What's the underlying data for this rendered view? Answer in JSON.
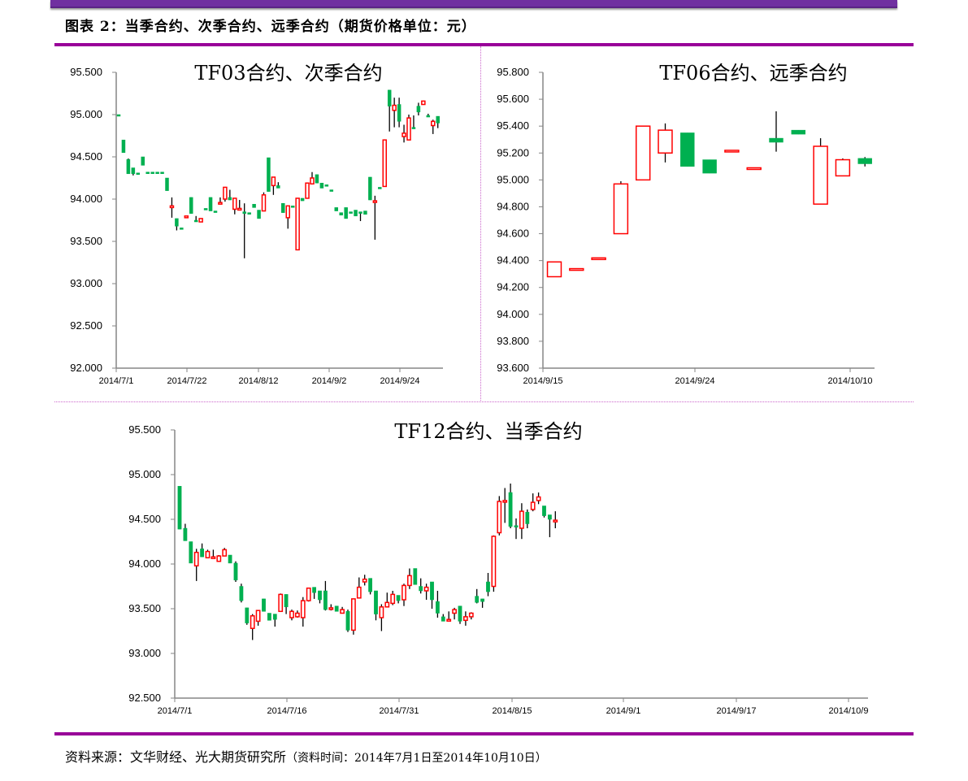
{
  "header": {
    "figure_title": "图表 2：当季合约、次季合约、远季合约（期货价格单位：元）"
  },
  "footer": {
    "source_label": "资料来源：文华财经、光大期货研究所",
    "source_note": "（资料时间：2014年7月1日至2014年10月10日）"
  },
  "colors": {
    "up": "#ff0000",
    "down": "#00b050",
    "wick": "#000000",
    "rule": "#990099",
    "topbar": "#7030a0"
  },
  "chart_data": [
    {
      "type": "candlestick",
      "title": "TF03合约、次季合约",
      "xlabel": "",
      "ylabel": "",
      "ylim": [
        92.0,
        95.5
      ],
      "yticks": [
        "92.000",
        "92.500",
        "93.000",
        "93.500",
        "94.000",
        "94.500",
        "95.000",
        "95.500"
      ],
      "xticks": [
        "2014/7/1",
        "2014/7/22",
        "2014/8/12",
        "2014/9/2",
        "2014/9/24"
      ],
      "grid": false,
      "candles": [
        [
          95.0,
          94.99,
          95.0,
          94.99
        ],
        [
          94.7,
          94.55,
          94.7,
          94.55
        ],
        [
          94.47,
          94.3,
          94.48,
          94.3
        ],
        [
          94.37,
          94.3,
          94.37,
          94.28
        ],
        [
          94.31,
          94.3,
          94.31,
          94.3
        ],
        [
          94.5,
          94.4,
          94.5,
          94.4
        ],
        [
          94.32,
          94.31,
          94.32,
          94.31
        ],
        [
          94.32,
          94.31,
          94.32,
          94.31
        ],
        [
          94.32,
          94.31,
          94.32,
          94.31
        ],
        [
          94.32,
          94.31,
          94.32,
          94.31
        ],
        [
          94.25,
          94.1,
          94.25,
          94.1
        ],
        [
          93.9,
          93.92,
          94.02,
          93.78
        ],
        [
          93.77,
          93.68,
          93.77,
          93.63
        ],
        [
          93.66,
          93.65,
          93.66,
          93.65
        ],
        [
          93.78,
          93.8,
          93.8,
          93.78
        ],
        [
          94.02,
          93.83,
          94.02,
          93.83
        ],
        [
          93.75,
          93.74,
          93.8,
          93.74
        ],
        [
          93.73,
          93.77,
          93.77,
          93.73
        ],
        [
          93.89,
          93.88,
          93.89,
          93.88
        ],
        [
          94.02,
          93.86,
          94.02,
          93.86
        ],
        [
          93.86,
          93.85,
          93.86,
          93.85
        ],
        [
          93.95,
          93.96,
          94.02,
          93.95
        ],
        [
          94.0,
          94.14,
          94.14,
          93.97
        ],
        [
          94.02,
          93.99,
          94.11,
          93.99
        ],
        [
          93.88,
          94.01,
          94.01,
          93.82
        ],
        [
          93.88,
          93.89,
          93.99,
          93.88
        ],
        [
          93.85,
          93.83,
          93.95,
          93.3
        ],
        [
          93.84,
          93.83,
          93.84,
          93.83
        ],
        [
          93.94,
          93.9,
          93.94,
          93.9
        ],
        [
          93.87,
          93.77,
          93.87,
          93.77
        ],
        [
          93.86,
          94.05,
          94.08,
          93.86
        ],
        [
          94.49,
          94.09,
          94.49,
          94.09
        ],
        [
          94.16,
          94.26,
          94.26,
          94.05
        ],
        [
          94.16,
          94.13,
          94.2,
          94.13
        ],
        [
          93.95,
          93.84,
          93.95,
          93.84
        ],
        [
          93.78,
          93.92,
          93.92,
          93.65
        ],
        [
          93.92,
          93.91,
          93.92,
          93.91
        ],
        [
          93.4,
          94.01,
          94.01,
          93.4
        ],
        [
          94.01,
          93.98,
          94.01,
          93.98
        ],
        [
          94.01,
          94.19,
          94.19,
          94.01
        ],
        [
          94.18,
          94.25,
          94.32,
          94.18
        ],
        [
          94.29,
          94.19,
          94.29,
          94.19
        ],
        [
          94.19,
          94.13,
          94.19,
          94.13
        ],
        [
          94.17,
          94.16,
          94.17,
          94.16
        ],
        [
          94.11,
          94.1,
          94.11,
          94.1
        ],
        [
          93.9,
          93.86,
          93.9,
          93.86
        ],
        [
          93.84,
          93.81,
          93.84,
          93.81
        ],
        [
          93.9,
          93.77,
          93.9,
          93.77
        ],
        [
          93.85,
          93.84,
          93.85,
          93.84
        ],
        [
          93.87,
          93.8,
          93.87,
          93.8
        ],
        [
          93.85,
          93.84,
          93.85,
          93.74
        ],
        [
          93.86,
          93.82,
          93.86,
          93.82
        ],
        [
          94.26,
          93.99,
          94.26,
          93.99
        ],
        [
          93.97,
          93.98,
          94.04,
          93.52
        ],
        [
          94.14,
          94.13,
          94.14,
          94.13
        ],
        [
          94.15,
          94.7,
          94.7,
          94.15
        ],
        [
          95.29,
          95.1,
          95.29,
          94.8
        ],
        [
          95.05,
          95.11,
          95.2,
          94.85
        ],
        [
          95.12,
          94.92,
          95.2,
          94.85
        ],
        [
          94.74,
          94.78,
          94.88,
          94.67
        ],
        [
          94.7,
          94.96,
          95.0,
          94.7
        ],
        [
          94.85,
          94.84,
          94.99,
          94.84
        ],
        [
          95.1,
          95.03,
          95.14,
          94.99
        ],
        [
          95.12,
          95.16,
          95.16,
          95.12
        ],
        [
          94.99,
          94.98,
          95.01,
          94.98
        ],
        [
          94.87,
          94.92,
          94.94,
          94.77
        ],
        [
          94.98,
          94.9,
          94.98,
          94.84
        ]
      ]
    },
    {
      "type": "candlestick",
      "title": "TF06合约、远季合约",
      "xlabel": "",
      "ylabel": "",
      "ylim": [
        93.6,
        95.8
      ],
      "yticks": [
        "93.600",
        "93.800",
        "94.000",
        "94.200",
        "94.400",
        "94.600",
        "94.800",
        "95.000",
        "95.200",
        "95.400",
        "95.600",
        "95.800"
      ],
      "xticks": [
        "2014/9/15",
        "2014/9/24",
        "2014/10/10"
      ],
      "grid": false,
      "candles": [
        [
          94.28,
          94.39,
          94.39,
          94.28
        ],
        [
          94.34,
          94.34,
          94.34,
          94.34
        ],
        [
          94.42,
          94.42,
          94.42,
          94.42
        ],
        [
          94.6,
          94.97,
          94.99,
          94.6
        ],
        [
          95.0,
          95.4,
          95.4,
          95.0
        ],
        [
          95.2,
          95.37,
          95.42,
          95.13
        ],
        [
          95.35,
          95.1,
          95.35,
          95.1
        ],
        [
          95.15,
          95.05,
          95.15,
          95.05
        ],
        [
          95.22,
          95.22,
          95.22,
          95.22
        ],
        [
          95.08,
          95.09,
          95.09,
          95.08
        ],
        [
          95.31,
          95.28,
          95.51,
          95.21
        ],
        [
          95.37,
          95.34,
          95.37,
          95.34
        ],
        [
          94.82,
          95.25,
          95.31,
          94.82
        ],
        [
          95.03,
          95.15,
          95.16,
          95.03
        ],
        [
          95.16,
          95.12,
          95.17,
          95.1
        ]
      ]
    },
    {
      "type": "candlestick",
      "title": "TF12合约、当季合约",
      "xlabel": "",
      "ylabel": "",
      "ylim": [
        92.5,
        95.5
      ],
      "yticks": [
        "92.500",
        "93.000",
        "93.500",
        "94.000",
        "94.500",
        "95.000",
        "95.500"
      ],
      "xticks": [
        "2014/7/1",
        "2014/7/16",
        "2014/7/31",
        "2014/8/15",
        "2014/9/1",
        "2014/9/17",
        "2014/10/9"
      ],
      "grid": false,
      "candles": [
        [
          94.87,
          94.39,
          94.87,
          94.39
        ],
        [
          94.4,
          94.26,
          94.45,
          94.26
        ],
        [
          94.25,
          94.01,
          94.25,
          94.01
        ],
        [
          93.98,
          94.13,
          94.17,
          93.81
        ],
        [
          94.17,
          94.08,
          94.23,
          94.08
        ],
        [
          94.07,
          94.14,
          94.16,
          94.07
        ],
        [
          94.07,
          94.08,
          94.16,
          94.07
        ],
        [
          94.03,
          94.09,
          94.1,
          94.03
        ],
        [
          94.09,
          94.16,
          94.18,
          94.09
        ],
        [
          94.1,
          94.01,
          94.1,
          94.01
        ],
        [
          94.01,
          93.82,
          94.03,
          93.8
        ],
        [
          93.75,
          93.59,
          93.78,
          93.57
        ],
        [
          93.51,
          93.34,
          93.51,
          93.32
        ],
        [
          93.28,
          93.42,
          93.44,
          93.15
        ],
        [
          93.36,
          93.48,
          93.48,
          93.31
        ],
        [
          93.61,
          93.47,
          93.61,
          93.47
        ],
        [
          93.45,
          93.37,
          93.45,
          93.37
        ],
        [
          93.44,
          93.38,
          93.44,
          93.3
        ],
        [
          93.47,
          93.66,
          93.67,
          93.47
        ],
        [
          93.66,
          93.52,
          93.66,
          93.44
        ],
        [
          93.4,
          93.47,
          93.49,
          93.37
        ],
        [
          93.41,
          93.45,
          93.48,
          93.4
        ],
        [
          93.4,
          93.59,
          93.63,
          93.3
        ],
        [
          93.59,
          93.73,
          93.73,
          93.58
        ],
        [
          93.74,
          93.68,
          93.74,
          93.61
        ],
        [
          93.7,
          93.6,
          93.7,
          93.56
        ],
        [
          93.7,
          93.49,
          93.81,
          93.48
        ],
        [
          93.5,
          93.51,
          93.55,
          93.48
        ],
        [
          93.53,
          93.47,
          93.53,
          93.47
        ],
        [
          93.45,
          93.49,
          93.52,
          93.45
        ],
        [
          93.47,
          93.26,
          93.49,
          93.24
        ],
        [
          93.26,
          93.61,
          93.61,
          93.21
        ],
        [
          93.62,
          93.74,
          93.85,
          93.62
        ],
        [
          93.8,
          93.83,
          93.88,
          93.76
        ],
        [
          93.84,
          93.69,
          93.84,
          93.66
        ],
        [
          93.7,
          93.44,
          93.7,
          93.37
        ],
        [
          93.4,
          93.52,
          93.55,
          93.25
        ],
        [
          93.52,
          93.57,
          93.68,
          93.52
        ],
        [
          93.56,
          93.66,
          93.7,
          93.54
        ],
        [
          93.65,
          93.59,
          93.65,
          93.56
        ],
        [
          93.6,
          93.76,
          93.78,
          93.53
        ],
        [
          93.76,
          93.87,
          93.95,
          93.72
        ],
        [
          93.95,
          93.77,
          93.95,
          93.77
        ],
        [
          93.75,
          93.7,
          93.84,
          93.67
        ],
        [
          93.7,
          93.74,
          93.78,
          93.6
        ],
        [
          93.8,
          93.6,
          93.8,
          93.5
        ],
        [
          93.58,
          93.45,
          93.7,
          93.4
        ],
        [
          93.41,
          93.36,
          93.44,
          93.36
        ],
        [
          93.37,
          93.38,
          93.47,
          93.37
        ],
        [
          93.45,
          93.49,
          93.51,
          93.38
        ],
        [
          93.53,
          93.36,
          93.53,
          93.33
        ],
        [
          93.37,
          93.41,
          93.47,
          93.31
        ],
        [
          93.41,
          93.45,
          93.46,
          93.38
        ],
        [
          93.64,
          93.57,
          93.72,
          93.56
        ],
        [
          93.61,
          93.58,
          93.61,
          93.51
        ],
        [
          93.8,
          93.69,
          93.9,
          93.64
        ],
        [
          93.75,
          94.31,
          94.32,
          93.69
        ],
        [
          94.35,
          94.7,
          94.76,
          94.32
        ],
        [
          94.7,
          94.71,
          94.85,
          94.46
        ],
        [
          94.8,
          94.42,
          94.9,
          94.4
        ],
        [
          94.43,
          94.42,
          94.51,
          94.28
        ],
        [
          94.4,
          94.59,
          94.68,
          94.28
        ],
        [
          94.58,
          94.45,
          94.61,
          94.4
        ],
        [
          94.61,
          94.69,
          94.79,
          94.59
        ],
        [
          94.71,
          94.75,
          94.8,
          94.67
        ],
        [
          94.65,
          94.54,
          94.65,
          94.52
        ],
        [
          94.55,
          94.5,
          94.55,
          94.3
        ],
        [
          94.49,
          94.49,
          94.59,
          94.4
        ]
      ]
    }
  ]
}
